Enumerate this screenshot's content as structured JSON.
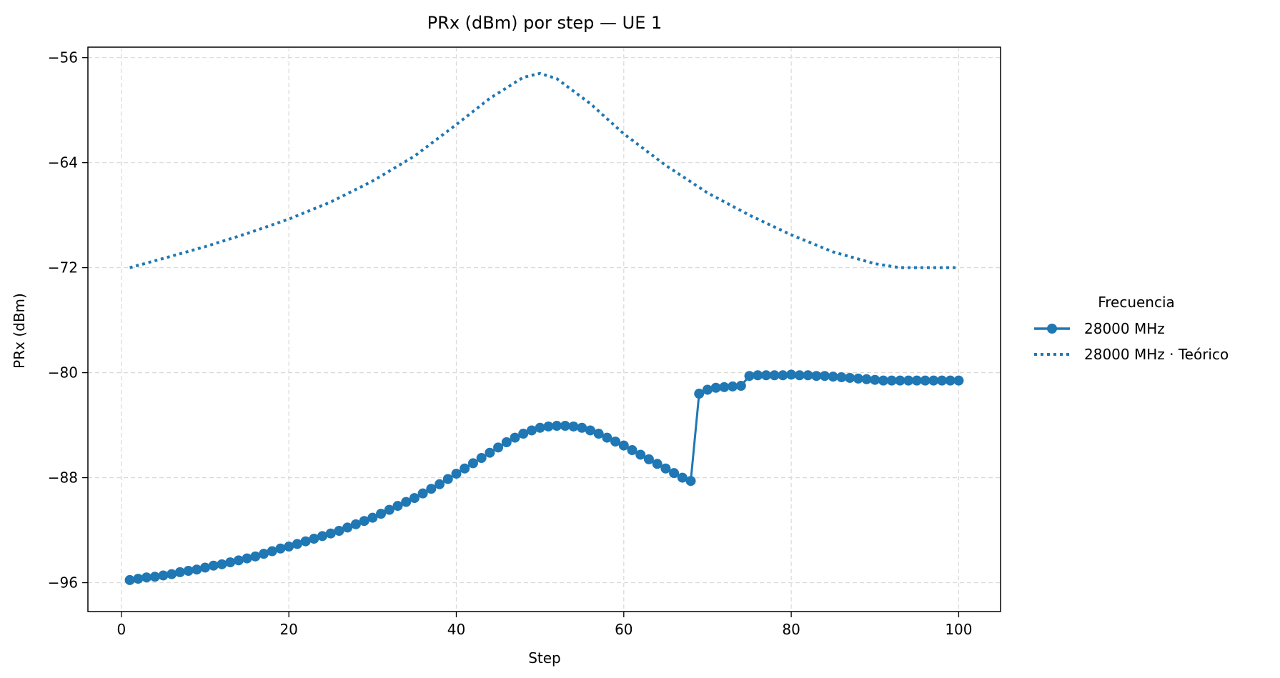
{
  "chart_data": {
    "type": "line",
    "title": "PRx (dBm) por step — UE 1",
    "xlabel": "Step",
    "ylabel": "PRx (dBm)",
    "xlim": [
      -4,
      105
    ],
    "ylim": [
      -98.2,
      -55.2
    ],
    "xticks": [
      0,
      20,
      40,
      60,
      80,
      100
    ],
    "yticks": [
      -56,
      -64,
      -72,
      -80,
      -88,
      -96
    ],
    "xtick_labels": [
      "0",
      "20",
      "40",
      "60",
      "80",
      "100"
    ],
    "ytick_labels": [
      "−56",
      "−64",
      "−72",
      "−80",
      "−88",
      "−96"
    ],
    "grid": true,
    "legend": {
      "title": "Frecuencia",
      "placement": "outside-right",
      "entries": [
        "28000 MHz",
        "28000 MHz · Teórico"
      ]
    },
    "colors": {
      "series": "#1f77b4",
      "grid": "#d9d9d9"
    },
    "series": [
      {
        "name": "28000 MHz",
        "style": "solid-with-markers",
        "x": [
          1,
          2,
          3,
          4,
          5,
          6,
          7,
          8,
          9,
          10,
          11,
          12,
          13,
          14,
          15,
          16,
          17,
          18,
          19,
          20,
          21,
          22,
          23,
          24,
          25,
          26,
          27,
          28,
          29,
          30,
          31,
          32,
          33,
          34,
          35,
          36,
          37,
          38,
          39,
          40,
          41,
          42,
          43,
          44,
          45,
          46,
          47,
          48,
          49,
          50,
          51,
          52,
          53,
          54,
          55,
          56,
          57,
          58,
          59,
          60,
          61,
          62,
          63,
          64,
          65,
          66,
          67,
          68,
          69,
          70,
          71,
          72,
          73,
          74,
          75,
          76,
          77,
          78,
          79,
          80,
          81,
          82,
          83,
          84,
          85,
          86,
          87,
          88,
          89,
          90,
          91,
          92,
          93,
          94,
          95,
          96,
          97,
          98,
          99,
          100
        ],
        "y": [
          -95.8,
          -95.7,
          -95.6,
          -95.55,
          -95.45,
          -95.35,
          -95.2,
          -95.1,
          -95.0,
          -94.85,
          -94.7,
          -94.6,
          -94.45,
          -94.3,
          -94.15,
          -94.0,
          -93.8,
          -93.6,
          -93.4,
          -93.25,
          -93.05,
          -92.85,
          -92.65,
          -92.45,
          -92.25,
          -92.05,
          -91.8,
          -91.55,
          -91.3,
          -91.05,
          -90.75,
          -90.45,
          -90.15,
          -89.85,
          -89.55,
          -89.2,
          -88.85,
          -88.5,
          -88.1,
          -87.7,
          -87.3,
          -86.9,
          -86.5,
          -86.1,
          -85.7,
          -85.3,
          -84.95,
          -84.65,
          -84.4,
          -84.2,
          -84.1,
          -84.05,
          -84.05,
          -84.1,
          -84.2,
          -84.4,
          -84.65,
          -84.95,
          -85.25,
          -85.55,
          -85.9,
          -86.25,
          -86.6,
          -86.95,
          -87.3,
          -87.65,
          -88.0,
          -88.25,
          -81.6,
          -81.3,
          -81.15,
          -81.1,
          -81.05,
          -81.0,
          -80.25,
          -80.2,
          -80.2,
          -80.2,
          -80.2,
          -80.15,
          -80.2,
          -80.2,
          -80.25,
          -80.25,
          -80.3,
          -80.35,
          -80.4,
          -80.45,
          -80.5,
          -80.55,
          -80.6,
          -80.6,
          -80.6,
          -80.6,
          -80.6,
          -80.6,
          -80.6,
          -80.6,
          -80.6,
          -80.6
        ]
      },
      {
        "name": "28000 MHz · Teórico",
        "style": "dotted",
        "x": [
          1,
          5,
          10,
          15,
          20,
          25,
          30,
          35,
          40,
          44,
          48,
          50,
          52,
          56,
          60,
          65,
          70,
          75,
          80,
          85,
          90,
          93,
          96,
          100
        ],
        "y": [
          -72.0,
          -71.3,
          -70.4,
          -69.4,
          -68.3,
          -67.0,
          -65.4,
          -63.5,
          -61.1,
          -59.1,
          -57.5,
          -57.2,
          -57.6,
          -59.5,
          -61.8,
          -64.2,
          -66.3,
          -68.0,
          -69.5,
          -70.8,
          -71.7,
          -72.0,
          -72.0,
          -72.0
        ]
      }
    ]
  }
}
